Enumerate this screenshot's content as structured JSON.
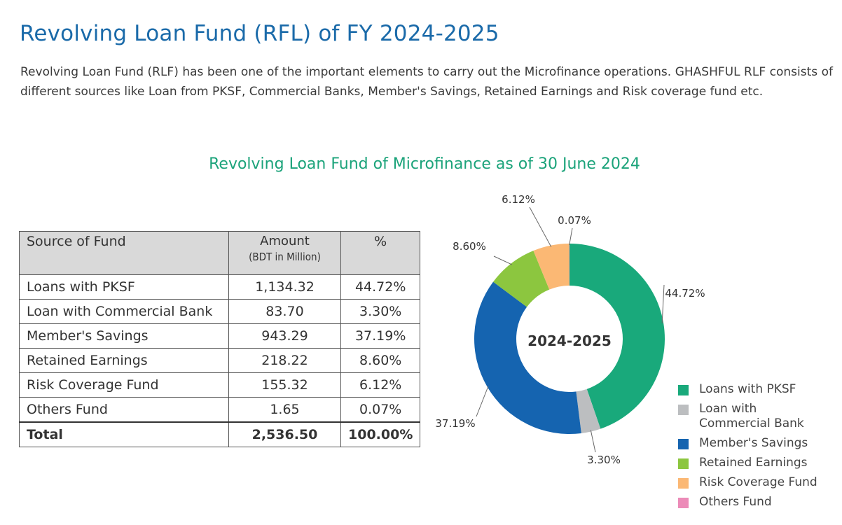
{
  "header": {
    "title": "Revolving Loan Fund (RFL) of FY 2024-2025",
    "intro": "Revolving Loan Fund (RLF) has been one of the important elements to carry out the Microfinance operations. GHASHFUL RLF consists of different sources like Loan from PKSF, Commercial Banks, Member's Savings, Retained Earnings and Risk coverage fund etc."
  },
  "section_title": "Revolving Loan Fund of Microfinance as of 30 June 2024",
  "table": {
    "headers": {
      "source": "Source of Fund",
      "amount": "Amount",
      "amount_unit": "(BDT in Million)",
      "percent": "%"
    },
    "rows": [
      {
        "source": "Loans with PKSF",
        "amount": "1,134.32",
        "percent": "44.72%"
      },
      {
        "source": "Loan with Commercial Bank",
        "amount": "83.70",
        "percent": "3.30%"
      },
      {
        "source": "Member's Savings",
        "amount": "943.29",
        "percent": "37.19%"
      },
      {
        "source": "Retained Earnings",
        "amount": "218.22",
        "percent": "8.60%"
      },
      {
        "source": "Risk Coverage Fund",
        "amount": "155.32",
        "percent": "6.12%"
      },
      {
        "source": "Others Fund",
        "amount": "1.65",
        "percent": "0.07%"
      }
    ],
    "total": {
      "source": "Total",
      "amount": "2,536.50",
      "percent": "100.00%"
    }
  },
  "chart_data": {
    "type": "pie",
    "donut": true,
    "center_label": "2024-2025",
    "categories": [
      "Loans with PKSF",
      "Loan with Commercial Bank",
      "Member's Savings",
      "Retained Earnings",
      "Risk Coverage Fund",
      "Others Fund"
    ],
    "values": [
      44.72,
      3.3,
      37.19,
      8.6,
      6.12,
      0.07
    ],
    "slice_labels": [
      "44.72%",
      "3.30%",
      "37.19%",
      "8.60%",
      "6.12%",
      "0.07%"
    ],
    "colors": [
      "#19a97b",
      "#bcbec0",
      "#1564b0",
      "#8cc63f",
      "#fbb874",
      "#ec8bb8"
    ],
    "legend": {
      "placement": "bottom-right",
      "items": [
        {
          "label": "Loans with PKSF",
          "color": "#19a97b"
        },
        {
          "label": "Loan with Commercial Bank",
          "color": "#bcbec0"
        },
        {
          "label": "Member's Savings",
          "color": "#1564b0"
        },
        {
          "label": "Retained Earnings",
          "color": "#8cc63f"
        },
        {
          "label": "Risk Coverage Fund",
          "color": "#fbb874"
        },
        {
          "label": "Others Fund",
          "color": "#ec8bb8"
        }
      ]
    }
  }
}
